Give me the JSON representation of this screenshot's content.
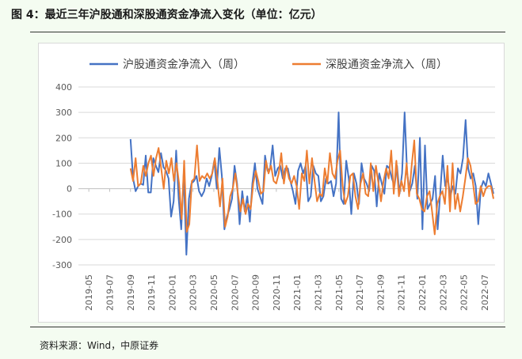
{
  "title": "图 4：最近三年沪股通和深股通资金净流入变化（单位：亿元）",
  "source": "资料来源：Wind，中原证券",
  "colors": {
    "sh": "#4472C4",
    "sz": "#ED7D31",
    "grid": "#d9d9d9",
    "axis": "#bfbfbf",
    "text": "#595959"
  },
  "chart_data": {
    "type": "line",
    "title": "",
    "xlabel": "",
    "ylabel": "",
    "ylim": [
      -300,
      400
    ],
    "yticks": [
      -300,
      -200,
      -100,
      0,
      100,
      200,
      300,
      400
    ],
    "xticks": [
      "2019-05",
      "2019-07",
      "2019-09",
      "2019-11",
      "2020-01",
      "2020-03",
      "2020-05",
      "2020-07",
      "2020-09",
      "2020-11",
      "2021-01",
      "2021-03",
      "2021-05",
      "2021-07",
      "2021-09",
      "2021-11",
      "2022-01",
      "2022-03",
      "2022-05",
      "2022-07"
    ],
    "x_unit": "week",
    "x_start": "2019-05",
    "grid": "horizontal",
    "legend": "top",
    "series": [
      {
        "name": "沪股通资金净流入（周）",
        "color": "#4472C4",
        "values": [
          195,
          40,
          -10,
          10,
          20,
          15,
          130,
          -15,
          -15,
          120,
          90,
          65,
          140,
          85,
          70,
          40,
          -110,
          -50,
          150,
          -40,
          -160,
          60,
          -260,
          -40,
          20,
          30,
          50,
          -10,
          -30,
          -10,
          40,
          10,
          50,
          110,
          0,
          160,
          50,
          -160,
          -110,
          -80,
          -40,
          90,
          20,
          -140,
          -10,
          -90,
          -30,
          -130,
          20,
          100,
          0,
          -30,
          -60,
          130,
          70,
          80,
          170,
          50,
          80,
          90,
          40,
          80,
          80,
          30,
          -10,
          -60,
          70,
          100,
          60,
          90,
          -50,
          -30,
          90,
          60,
          50,
          -50,
          -30,
          40,
          20,
          30,
          -30,
          20,
          300,
          -40,
          -60,
          110,
          40,
          -100,
          60,
          20,
          -60,
          100,
          40,
          20,
          -10,
          90,
          70,
          -70,
          60,
          20,
          -20,
          90,
          80,
          40,
          10,
          90,
          -20,
          60,
          300,
          60,
          -10,
          20,
          90,
          -40,
          200,
          -160,
          170,
          -80,
          -60,
          -40,
          50,
          -160,
          -20,
          130,
          10,
          40,
          -30,
          10,
          -20,
          80,
          60,
          120,
          270,
          80,
          40,
          60,
          10,
          -140,
          0,
          30,
          10,
          60,
          20,
          -20
        ]
      },
      {
        "name": "深股通资金净流入（周）",
        "color": "#ED7D31",
        "values": [
          80,
          30,
          120,
          10,
          20,
          90,
          50,
          100,
          130,
          50,
          120,
          160,
          80,
          0,
          110,
          60,
          120,
          30,
          100,
          20,
          -120,
          110,
          -170,
          -140,
          30,
          40,
          170,
          30,
          50,
          40,
          60,
          40,
          60,
          120,
          30,
          -70,
          40,
          -150,
          -110,
          -30,
          0,
          60,
          -20,
          -90,
          -40,
          -100,
          -60,
          -80,
          20,
          70,
          30,
          -20,
          -10,
          110,
          60,
          90,
          30,
          20,
          60,
          140,
          20,
          90,
          40,
          20,
          50,
          10,
          -80,
          60,
          30,
          150,
          20,
          120,
          30,
          -50,
          -20,
          -30,
          80,
          20,
          140,
          60,
          40,
          110,
          150,
          10,
          -60,
          -30,
          50,
          60,
          -30,
          -80,
          20,
          60,
          -20,
          -30,
          100,
          -10,
          90,
          20,
          -50,
          30,
          80,
          40,
          150,
          -20,
          110,
          -30,
          30,
          -10,
          100,
          -30,
          90,
          190,
          -20,
          -40,
          -80,
          -90,
          -30,
          -10,
          -90,
          -180,
          -60,
          -30,
          -10,
          -60,
          90,
          -90,
          100,
          -80,
          -20,
          -90,
          -30,
          40,
          120,
          90,
          20,
          -60,
          -50,
          10,
          -30,
          0,
          10,
          10,
          -40
        ]
      }
    ]
  }
}
